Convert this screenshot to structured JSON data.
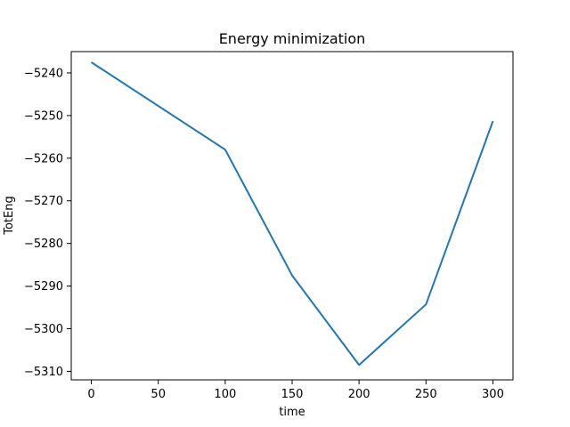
{
  "chart_data": {
    "type": "line",
    "title": "Energy minimization",
    "xlabel": "time",
    "ylabel": "TotEng",
    "xlim": [
      -15,
      315
    ],
    "ylim": [
      -5312,
      -5235
    ],
    "xticks": [
      0,
      50,
      100,
      150,
      200,
      250,
      300
    ],
    "yticks": [
      -5310,
      -5300,
      -5290,
      -5280,
      -5270,
      -5260,
      -5250,
      -5240
    ],
    "grid": false,
    "legend": "none",
    "series": [
      {
        "color": "#1f77b4",
        "x": [
          0,
          100,
          150,
          200,
          250,
          300
        ],
        "y": [
          -5237.5,
          -5258.0,
          -5287.5,
          -5308.5,
          -5294.3,
          -5251.3
        ]
      }
    ]
  }
}
